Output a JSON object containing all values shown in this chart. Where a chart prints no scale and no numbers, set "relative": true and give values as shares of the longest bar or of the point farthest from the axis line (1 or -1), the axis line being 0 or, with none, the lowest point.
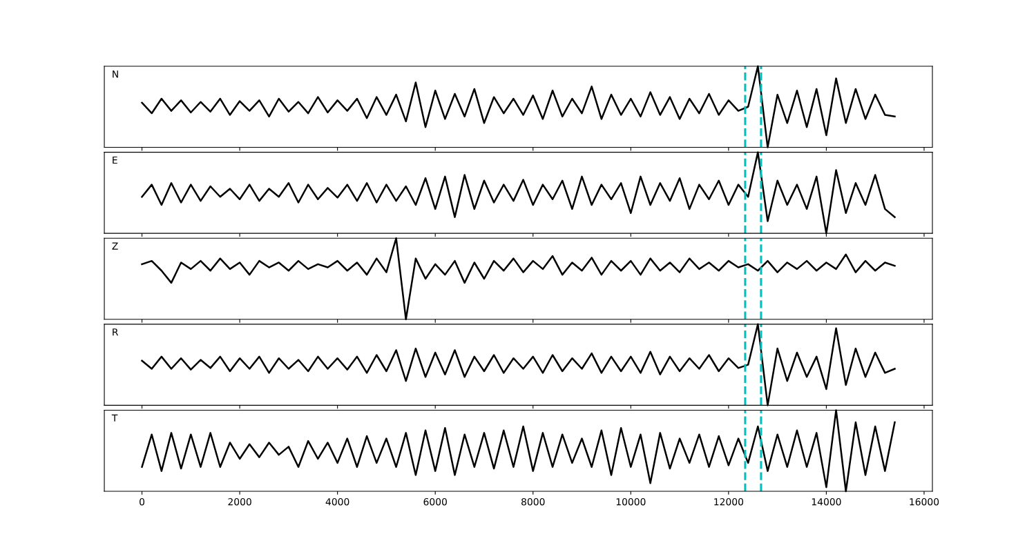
{
  "chart_data": [
    {
      "type": "line",
      "title": "N",
      "relative": true,
      "tick_labels": false,
      "grid": false,
      "xlim": [
        -770,
        16170
      ],
      "xticks": [
        0,
        2000,
        4000,
        6000,
        8000,
        10000,
        12000,
        14000,
        16000
      ],
      "x": [
        0,
        200,
        400,
        600,
        800,
        1000,
        1200,
        1400,
        1600,
        1800,
        2000,
        2200,
        2400,
        2600,
        2800,
        3000,
        3200,
        3400,
        3600,
        3800,
        4000,
        4200,
        4400,
        4600,
        4800,
        5000,
        5200,
        5400,
        5600,
        5800,
        6000,
        6200,
        6400,
        6600,
        6800,
        7000,
        7200,
        7400,
        7600,
        7800,
        8000,
        8200,
        8400,
        8600,
        8800,
        9000,
        9200,
        9400,
        9600,
        9800,
        10000,
        10200,
        10400,
        10600,
        10800,
        11000,
        11200,
        11400,
        11600,
        11800,
        12000,
        12200,
        12400,
        12600,
        12800,
        13000,
        13200,
        13400,
        13600,
        13800,
        14000,
        14200,
        14400,
        14600,
        14800,
        15000,
        15200,
        15400
      ],
      "series": [
        {
          "color": "#000000",
          "values": [
            0.55,
            0.42,
            0.6,
            0.45,
            0.58,
            0.43,
            0.56,
            0.44,
            0.6,
            0.4,
            0.57,
            0.45,
            0.58,
            0.38,
            0.6,
            0.44,
            0.56,
            0.42,
            0.62,
            0.43,
            0.58,
            0.45,
            0.6,
            0.36,
            0.62,
            0.4,
            0.65,
            0.32,
            0.8,
            0.25,
            0.7,
            0.35,
            0.66,
            0.38,
            0.72,
            0.3,
            0.62,
            0.42,
            0.6,
            0.4,
            0.64,
            0.35,
            0.7,
            0.38,
            0.6,
            0.42,
            0.75,
            0.35,
            0.65,
            0.4,
            0.6,
            0.38,
            0.68,
            0.4,
            0.62,
            0.35,
            0.6,
            0.42,
            0.66,
            0.4,
            0.58,
            0.45,
            0.5,
            1.0,
            0.0,
            0.65,
            0.3,
            0.7,
            0.25,
            0.72,
            0.15,
            0.85,
            0.3,
            0.72,
            0.35,
            0.65,
            0.4,
            0.38
          ]
        }
      ],
      "ref_lines": [
        {
          "axis": "x",
          "value": 12340,
          "color": "#00bfbf",
          "line_style": "dashed"
        },
        {
          "axis": "x",
          "value": 12665,
          "color": "#00bfbf",
          "line_style": "dashed"
        }
      ]
    },
    {
      "type": "line",
      "title": "E",
      "relative": true,
      "tick_labels": false,
      "grid": false,
      "xlim": [
        -770,
        16170
      ],
      "xticks": [
        0,
        2000,
        4000,
        6000,
        8000,
        10000,
        12000,
        14000,
        16000
      ],
      "x": [
        0,
        200,
        400,
        600,
        800,
        1000,
        1200,
        1400,
        1600,
        1800,
        2000,
        2200,
        2400,
        2600,
        2800,
        3000,
        3200,
        3400,
        3600,
        3800,
        4000,
        4200,
        4400,
        4600,
        4800,
        5000,
        5200,
        5400,
        5600,
        5800,
        6000,
        6200,
        6400,
        6600,
        6800,
        7000,
        7200,
        7400,
        7600,
        7800,
        8000,
        8200,
        8400,
        8600,
        8800,
        9000,
        9200,
        9400,
        9600,
        9800,
        10000,
        10200,
        10400,
        10600,
        10800,
        11000,
        11200,
        11400,
        11600,
        11800,
        12000,
        12200,
        12400,
        12600,
        12800,
        13000,
        13200,
        13400,
        13600,
        13800,
        14000,
        14200,
        14400,
        14600,
        14800,
        15000,
        15200,
        15400
      ],
      "series": [
        {
          "color": "#000000",
          "values": [
            0.45,
            0.6,
            0.35,
            0.62,
            0.38,
            0.6,
            0.4,
            0.58,
            0.45,
            0.55,
            0.42,
            0.6,
            0.4,
            0.55,
            0.45,
            0.62,
            0.38,
            0.6,
            0.42,
            0.56,
            0.44,
            0.6,
            0.4,
            0.62,
            0.38,
            0.6,
            0.4,
            0.58,
            0.35,
            0.68,
            0.3,
            0.7,
            0.2,
            0.72,
            0.3,
            0.65,
            0.38,
            0.6,
            0.4,
            0.66,
            0.35,
            0.6,
            0.42,
            0.65,
            0.3,
            0.7,
            0.35,
            0.6,
            0.42,
            0.62,
            0.25,
            0.7,
            0.35,
            0.62,
            0.4,
            0.68,
            0.3,
            0.6,
            0.42,
            0.65,
            0.35,
            0.6,
            0.45,
            1.0,
            0.15,
            0.65,
            0.35,
            0.6,
            0.3,
            0.7,
            0.0,
            0.78,
            0.25,
            0.62,
            0.35,
            0.72,
            0.3,
            0.2
          ]
        }
      ],
      "ref_lines": [
        {
          "axis": "x",
          "value": 12340,
          "color": "#00bfbf",
          "line_style": "dashed"
        },
        {
          "axis": "x",
          "value": 12665,
          "color": "#00bfbf",
          "line_style": "dashed"
        }
      ]
    },
    {
      "type": "line",
      "title": "Z",
      "relative": true,
      "tick_labels": false,
      "grid": false,
      "xlim": [
        -770,
        16170
      ],
      "xticks": [
        0,
        2000,
        4000,
        6000,
        8000,
        10000,
        12000,
        14000,
        16000
      ],
      "x": [
        0,
        200,
        400,
        600,
        800,
        1000,
        1200,
        1400,
        1600,
        1800,
        2000,
        2200,
        2400,
        2600,
        2800,
        3000,
        3200,
        3400,
        3600,
        3800,
        4000,
        4200,
        4400,
        4600,
        4800,
        5000,
        5200,
        5400,
        5600,
        5800,
        6000,
        6200,
        6400,
        6600,
        6800,
        7000,
        7200,
        7400,
        7600,
        7800,
        8000,
        8200,
        8400,
        8600,
        8800,
        9000,
        9200,
        9400,
        9600,
        9800,
        10000,
        10200,
        10400,
        10600,
        10800,
        11000,
        11200,
        11400,
        11600,
        11800,
        12000,
        12200,
        12400,
        12600,
        12800,
        13000,
        13200,
        13400,
        13600,
        13800,
        14000,
        14200,
        14400,
        14600,
        14800,
        15000,
        15200,
        15400
      ],
      "series": [
        {
          "color": "#000000",
          "values": [
            0.68,
            0.72,
            0.6,
            0.45,
            0.7,
            0.62,
            0.72,
            0.6,
            0.75,
            0.62,
            0.7,
            0.55,
            0.72,
            0.64,
            0.7,
            0.6,
            0.72,
            0.62,
            0.68,
            0.64,
            0.72,
            0.6,
            0.7,
            0.55,
            0.75,
            0.58,
            1.0,
            0.0,
            0.75,
            0.5,
            0.68,
            0.55,
            0.72,
            0.45,
            0.7,
            0.5,
            0.72,
            0.6,
            0.75,
            0.58,
            0.72,
            0.62,
            0.78,
            0.55,
            0.7,
            0.6,
            0.76,
            0.55,
            0.72,
            0.6,
            0.72,
            0.55,
            0.75,
            0.6,
            0.7,
            0.58,
            0.75,
            0.62,
            0.7,
            0.6,
            0.72,
            0.64,
            0.68,
            0.6,
            0.72,
            0.58,
            0.7,
            0.62,
            0.72,
            0.6,
            0.7,
            0.62,
            0.8,
            0.58,
            0.72,
            0.6,
            0.7,
            0.66
          ]
        }
      ],
      "ref_lines": [
        {
          "axis": "x",
          "value": 12340,
          "color": "#00bfbf",
          "line_style": "dashed"
        },
        {
          "axis": "x",
          "value": 12665,
          "color": "#00bfbf",
          "line_style": "dashed"
        }
      ]
    },
    {
      "type": "line",
      "title": "R",
      "relative": true,
      "tick_labels": false,
      "grid": false,
      "xlim": [
        -770,
        16170
      ],
      "xticks": [
        0,
        2000,
        4000,
        6000,
        8000,
        10000,
        12000,
        14000,
        16000
      ],
      "x": [
        0,
        200,
        400,
        600,
        800,
        1000,
        1200,
        1400,
        1600,
        1800,
        2000,
        2200,
        2400,
        2600,
        2800,
        3000,
        3200,
        3400,
        3600,
        3800,
        4000,
        4200,
        4400,
        4600,
        4800,
        5000,
        5200,
        5400,
        5600,
        5800,
        6000,
        6200,
        6400,
        6600,
        6800,
        7000,
        7200,
        7400,
        7600,
        7800,
        8000,
        8200,
        8400,
        8600,
        8800,
        9000,
        9200,
        9400,
        9600,
        9800,
        10000,
        10200,
        10400,
        10600,
        10800,
        11000,
        11200,
        11400,
        11600,
        11800,
        12000,
        12200,
        12400,
        12600,
        12800,
        13000,
        13200,
        13400,
        13600,
        13800,
        14000,
        14200,
        14400,
        14600,
        14800,
        15000,
        15200,
        15400
      ],
      "series": [
        {
          "color": "#000000",
          "values": [
            0.55,
            0.45,
            0.6,
            0.45,
            0.58,
            0.44,
            0.56,
            0.46,
            0.6,
            0.42,
            0.58,
            0.45,
            0.6,
            0.4,
            0.58,
            0.45,
            0.56,
            0.42,
            0.6,
            0.45,
            0.58,
            0.44,
            0.6,
            0.4,
            0.62,
            0.42,
            0.68,
            0.3,
            0.7,
            0.35,
            0.65,
            0.38,
            0.68,
            0.35,
            0.6,
            0.42,
            0.62,
            0.4,
            0.58,
            0.45,
            0.6,
            0.4,
            0.62,
            0.42,
            0.58,
            0.45,
            0.64,
            0.4,
            0.6,
            0.42,
            0.6,
            0.4,
            0.66,
            0.38,
            0.6,
            0.42,
            0.58,
            0.45,
            0.62,
            0.42,
            0.58,
            0.46,
            0.5,
            1.0,
            0.0,
            0.7,
            0.3,
            0.65,
            0.35,
            0.6,
            0.2,
            0.95,
            0.25,
            0.7,
            0.35,
            0.65,
            0.4,
            0.45
          ]
        }
      ],
      "ref_lines": [
        {
          "axis": "x",
          "value": 12340,
          "color": "#00bfbf",
          "line_style": "dashed"
        },
        {
          "axis": "x",
          "value": 12665,
          "color": "#00bfbf",
          "line_style": "dashed"
        }
      ]
    },
    {
      "type": "line",
      "title": "T",
      "relative": true,
      "tick_labels": "x",
      "grid": false,
      "xlim": [
        -770,
        16170
      ],
      "xticks": [
        0,
        2000,
        4000,
        6000,
        8000,
        10000,
        12000,
        14000,
        16000
      ],
      "x": [
        0,
        200,
        400,
        600,
        800,
        1000,
        1200,
        1400,
        1600,
        1800,
        2000,
        2200,
        2400,
        2600,
        2800,
        3000,
        3200,
        3400,
        3600,
        3800,
        4000,
        4200,
        4400,
        4600,
        4800,
        5000,
        5200,
        5400,
        5600,
        5800,
        6000,
        6200,
        6400,
        6600,
        6800,
        7000,
        7200,
        7400,
        7600,
        7800,
        8000,
        8200,
        8400,
        8600,
        8800,
        9000,
        9200,
        9400,
        9600,
        9800,
        10000,
        10200,
        10400,
        10600,
        10800,
        11000,
        11200,
        11400,
        11600,
        11800,
        12000,
        12200,
        12400,
        12600,
        12800,
        13000,
        13200,
        13400,
        13600,
        13800,
        14000,
        14200,
        14400,
        14600,
        14800,
        15000,
        15200,
        15400
      ],
      "series": [
        {
          "color": "#000000",
          "values": [
            0.3,
            0.7,
            0.25,
            0.72,
            0.28,
            0.7,
            0.3,
            0.72,
            0.3,
            0.6,
            0.4,
            0.58,
            0.42,
            0.6,
            0.45,
            0.55,
            0.3,
            0.62,
            0.4,
            0.6,
            0.35,
            0.65,
            0.3,
            0.68,
            0.35,
            0.65,
            0.3,
            0.72,
            0.2,
            0.75,
            0.25,
            0.78,
            0.2,
            0.7,
            0.3,
            0.72,
            0.28,
            0.75,
            0.3,
            0.8,
            0.25,
            0.72,
            0.3,
            0.7,
            0.35,
            0.65,
            0.3,
            0.75,
            0.2,
            0.78,
            0.3,
            0.7,
            0.1,
            0.72,
            0.28,
            0.65,
            0.35,
            0.7,
            0.3,
            0.68,
            0.32,
            0.65,
            0.35,
            0.8,
            0.25,
            0.7,
            0.3,
            0.75,
            0.3,
            0.72,
            0.05,
            1.0,
            0.0,
            0.85,
            0.2,
            0.8,
            0.25,
            0.85
          ]
        }
      ],
      "ref_lines": [
        {
          "axis": "x",
          "value": 12340,
          "color": "#00bfbf",
          "line_style": "dashed"
        },
        {
          "axis": "x",
          "value": 12665,
          "color": "#00bfbf",
          "line_style": "dashed"
        }
      ]
    }
  ]
}
